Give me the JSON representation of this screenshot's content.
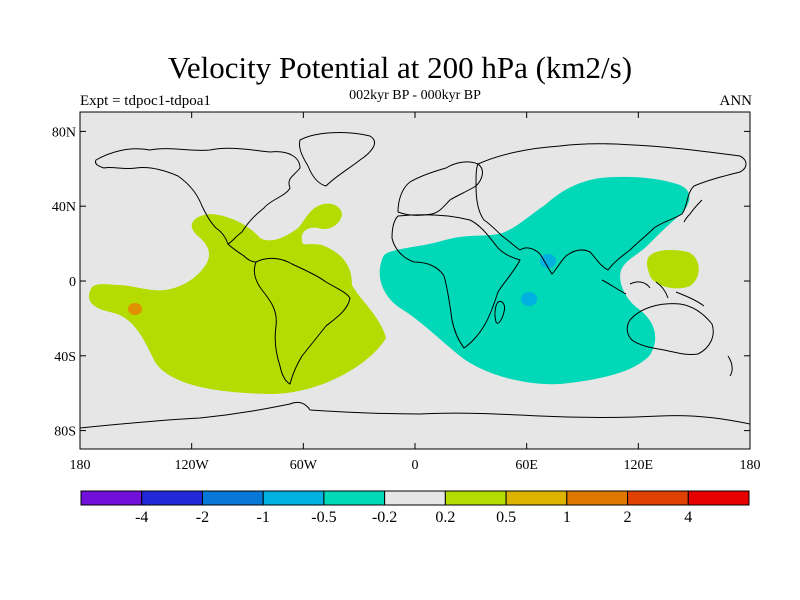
{
  "title": "Velocity Potential at 200 hPa (km2/s)",
  "subtitle": "002kyr BP - 000kyr BP",
  "left_label": "Expt = tdpoc1-tdpoa1",
  "right_label": "ANN",
  "lat_ticks": [
    {
      "value": 80,
      "label": "80N"
    },
    {
      "value": 40,
      "label": "40N"
    },
    {
      "value": 0,
      "label": "0"
    },
    {
      "value": -40,
      "label": "40S"
    },
    {
      "value": -80,
      "label": "80S"
    }
  ],
  "lon_ticks": [
    {
      "value": -180,
      "label": "180"
    },
    {
      "value": -120,
      "label": "120W"
    },
    {
      "value": -60,
      "label": "60W"
    },
    {
      "value": 0,
      "label": "0"
    },
    {
      "value": 60,
      "label": "60E"
    },
    {
      "value": 120,
      "label": "120E"
    },
    {
      "value": 180,
      "label": "180"
    }
  ],
  "colorbar": {
    "colors": [
      "#7010d8",
      "#2028d8",
      "#0878d8",
      "#00b0e0",
      "#00d8b8",
      "#e6e6e6",
      "#b4dc00",
      "#dcb400",
      "#e07800",
      "#e04000",
      "#e80000"
    ],
    "labels": [
      "-4",
      "-2",
      "-1",
      "-0.5",
      "-0.2",
      "0.2",
      "0.5",
      "1",
      "2",
      "4"
    ]
  },
  "colors": {
    "background": "#e6e6e6",
    "positive": "#b4dc00",
    "negative": "#00d8b8",
    "strong_negative": "#00b0e0",
    "strong_positive": "#e09000"
  }
}
